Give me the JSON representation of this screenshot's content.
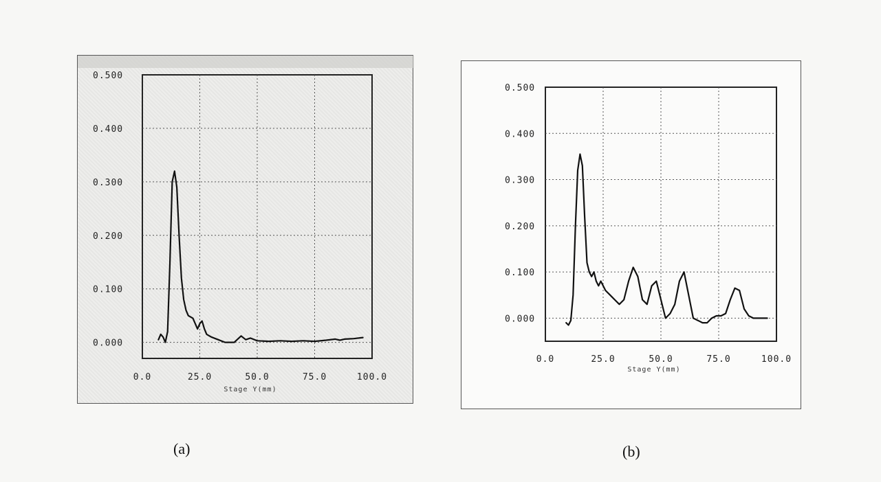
{
  "captions": [
    "(a)",
    "(b)"
  ],
  "chart_data": [
    {
      "type": "line",
      "xlabel": "Stage Y(mm)",
      "ylabel": "",
      "xlim": [
        0,
        100
      ],
      "ylim": [
        -0.03,
        0.5
      ],
      "x_ticks": [
        "0.0",
        "25.0",
        "50.0",
        "75.0",
        "100.0"
      ],
      "y_ticks": [
        "0.000",
        "0.100",
        "0.200",
        "0.300",
        "0.400",
        "0.500"
      ],
      "grid": true,
      "series": [
        {
          "x": [
            7,
            8,
            9,
            10,
            11,
            12,
            13,
            14,
            15,
            16,
            17,
            18,
            19,
            20,
            22,
            24,
            25,
            26,
            27,
            28,
            30,
            33,
            36,
            40,
            43,
            45,
            47,
            50,
            55,
            60,
            65,
            70,
            75,
            80,
            84,
            86,
            88,
            92,
            96
          ],
          "y": [
            0.005,
            0.015,
            0.01,
            0.0,
            0.02,
            0.15,
            0.3,
            0.32,
            0.29,
            0.2,
            0.12,
            0.08,
            0.06,
            0.05,
            0.045,
            0.025,
            0.035,
            0.04,
            0.025,
            0.015,
            0.01,
            0.005,
            0.0,
            0.0,
            0.012,
            0.005,
            0.008,
            0.003,
            0.002,
            0.003,
            0.002,
            0.003,
            0.002,
            0.004,
            0.006,
            0.004,
            0.006,
            0.007,
            0.009
          ]
        }
      ]
    },
    {
      "type": "line",
      "xlabel": "Stage Y(mm)",
      "ylabel": "",
      "xlim": [
        0,
        100
      ],
      "ylim": [
        -0.05,
        0.5
      ],
      "x_ticks": [
        "0.0",
        "25.0",
        "50.0",
        "75.0",
        "100.0"
      ],
      "y_ticks": [
        "0.000",
        "0.100",
        "0.200",
        "0.300",
        "0.400",
        "0.500"
      ],
      "grid": true,
      "series": [
        {
          "x": [
            9,
            10,
            11,
            12,
            13,
            14,
            15,
            16,
            17,
            18,
            19,
            20,
            21,
            22,
            23,
            24,
            26,
            28,
            30,
            32,
            34,
            36,
            38,
            40,
            42,
            44,
            46,
            48,
            50,
            52,
            54,
            56,
            58,
            60,
            62,
            64,
            66,
            68,
            70,
            72,
            74,
            76,
            78,
            80,
            82,
            84,
            86,
            88,
            90,
            92,
            94,
            96
          ],
          "y": [
            -0.01,
            -0.015,
            -0.005,
            0.05,
            0.2,
            0.32,
            0.355,
            0.33,
            0.22,
            0.12,
            0.1,
            0.09,
            0.1,
            0.08,
            0.07,
            0.08,
            0.06,
            0.05,
            0.04,
            0.03,
            0.04,
            0.08,
            0.11,
            0.09,
            0.04,
            0.03,
            0.07,
            0.08,
            0.04,
            0.0,
            0.01,
            0.03,
            0.08,
            0.1,
            0.05,
            0.0,
            -0.005,
            -0.01,
            -0.01,
            0.0,
            0.005,
            0.005,
            0.01,
            0.04,
            0.065,
            0.06,
            0.02,
            0.005,
            0.0,
            0.0,
            0.0,
            0.0
          ]
        }
      ]
    }
  ]
}
